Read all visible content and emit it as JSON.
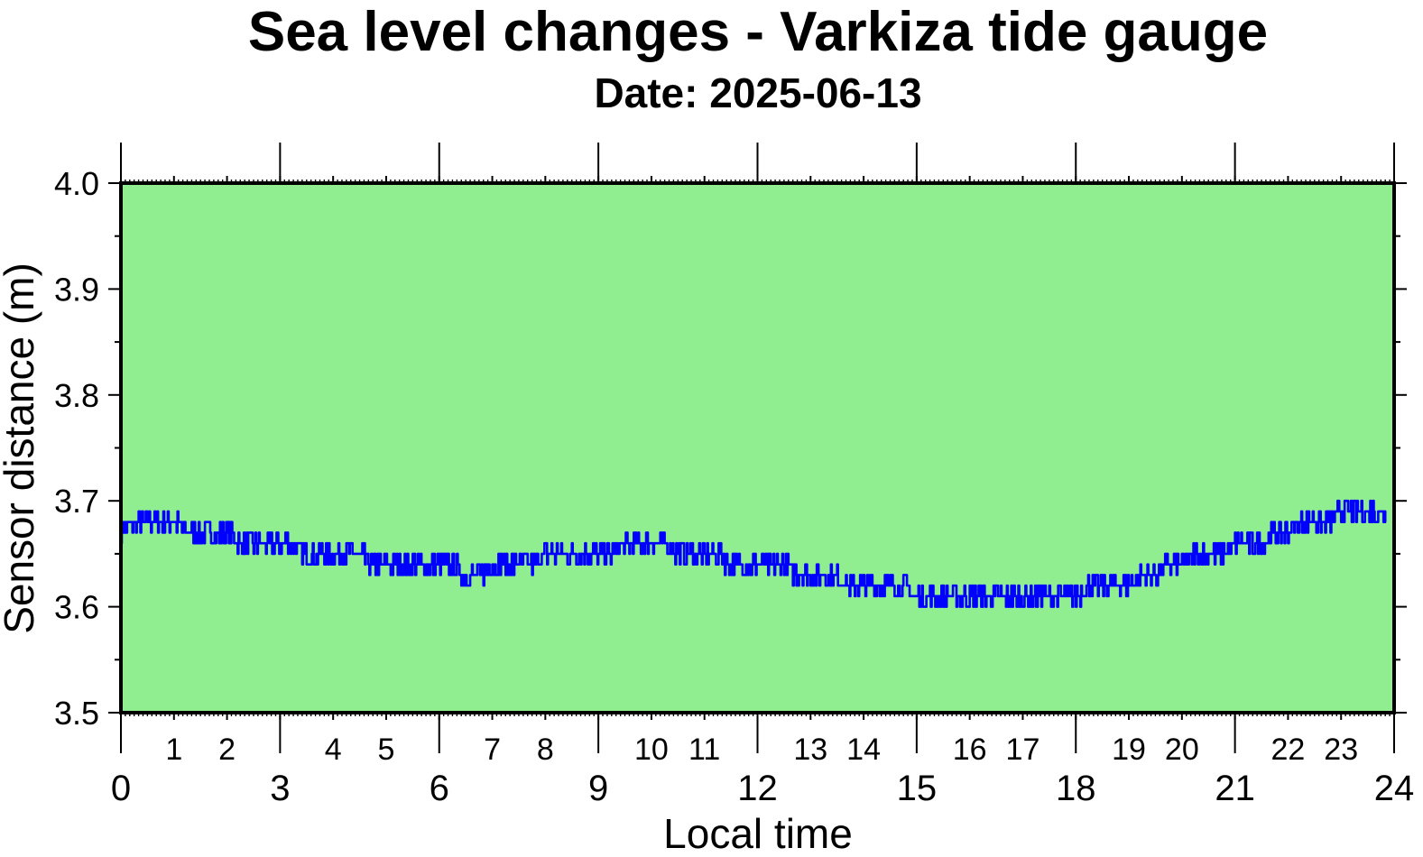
{
  "chart_data": {
    "type": "line",
    "title": "Sea level changes - Varkiza tide gauge",
    "subtitle": "Date: 2025-06-13",
    "xlabel": "Local time",
    "ylabel": "Sensor distance (m)",
    "xlim": [
      0,
      24
    ],
    "ylim": [
      3.5,
      4.0
    ],
    "x_major_ticks": [
      "0",
      "3",
      "6",
      "9",
      "12",
      "15",
      "18",
      "21",
      "24"
    ],
    "x_minor_ticks": [
      "1",
      "2",
      "4",
      "5",
      "7",
      "8",
      "10",
      "11",
      "13",
      "14",
      "16",
      "17",
      "19",
      "20",
      "22",
      "23"
    ],
    "y_ticks": [
      "3.5",
      "3.6",
      "3.7",
      "3.8",
      "3.9",
      "4.0"
    ],
    "grid": false,
    "plot_background": "#90ee90",
    "series": [
      {
        "color": "#0000ff",
        "x": [
          0.0,
          0.25,
          0.5,
          0.75,
          1.0,
          1.25,
          1.5,
          1.75,
          2.0,
          2.25,
          2.5,
          2.75,
          3.0,
          3.25,
          3.5,
          3.75,
          4.0,
          4.25,
          4.5,
          4.75,
          5.0,
          5.25,
          5.5,
          5.75,
          6.0,
          6.25,
          6.5,
          6.75,
          7.0,
          7.25,
          7.5,
          7.75,
          8.0,
          8.25,
          8.5,
          8.75,
          9.0,
          9.25,
          9.5,
          9.75,
          10.0,
          10.25,
          10.5,
          10.75,
          11.0,
          11.25,
          11.5,
          11.75,
          12.0,
          12.25,
          12.5,
          12.75,
          13.0,
          13.25,
          13.5,
          13.75,
          14.0,
          14.25,
          14.5,
          14.75,
          15.0,
          15.25,
          15.5,
          15.75,
          16.0,
          16.25,
          16.5,
          16.75,
          17.0,
          17.25,
          17.5,
          17.75,
          18.0,
          18.25,
          18.5,
          18.75,
          19.0,
          19.25,
          19.5,
          19.75,
          20.0,
          20.25,
          20.5,
          20.75,
          21.0,
          21.25,
          21.5,
          21.75,
          22.0,
          22.25,
          22.5,
          22.75,
          23.0,
          23.25,
          23.5,
          23.75,
          23.85
        ],
        "y": [
          3.67,
          3.68,
          3.68,
          3.68,
          3.68,
          3.67,
          3.67,
          3.67,
          3.67,
          3.66,
          3.66,
          3.66,
          3.66,
          3.66,
          3.65,
          3.65,
          3.65,
          3.65,
          3.65,
          3.64,
          3.64,
          3.64,
          3.64,
          3.64,
          3.64,
          3.64,
          3.63,
          3.63,
          3.64,
          3.64,
          3.64,
          3.64,
          3.65,
          3.65,
          3.65,
          3.65,
          3.65,
          3.65,
          3.66,
          3.66,
          3.66,
          3.66,
          3.65,
          3.65,
          3.65,
          3.65,
          3.64,
          3.64,
          3.64,
          3.64,
          3.64,
          3.63,
          3.63,
          3.63,
          3.63,
          3.62,
          3.62,
          3.62,
          3.62,
          3.62,
          3.61,
          3.61,
          3.61,
          3.61,
          3.61,
          3.61,
          3.61,
          3.61,
          3.61,
          3.61,
          3.61,
          3.61,
          3.61,
          3.62,
          3.62,
          3.62,
          3.62,
          3.63,
          3.63,
          3.64,
          3.64,
          3.65,
          3.65,
          3.65,
          3.66,
          3.66,
          3.66,
          3.67,
          3.67,
          3.68,
          3.68,
          3.68,
          3.69,
          3.69,
          3.69,
          3.69,
          3.69
        ]
      }
    ]
  }
}
